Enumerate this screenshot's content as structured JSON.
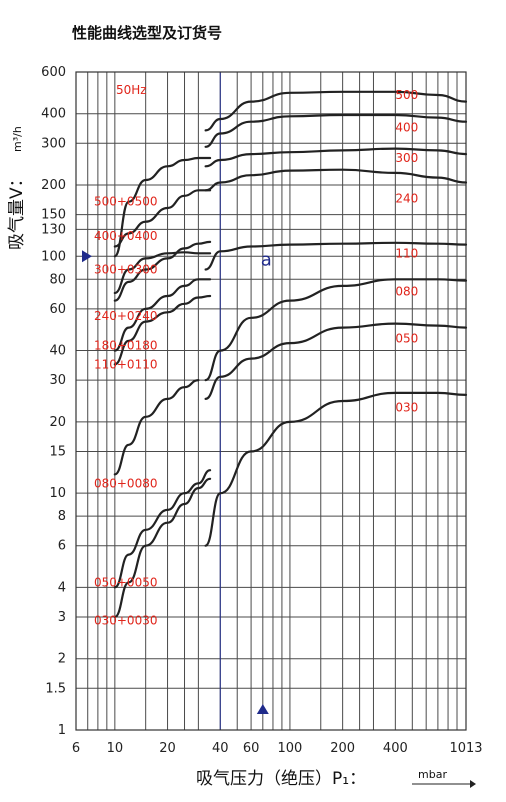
{
  "title": "性能曲线选型及订货号",
  "y_axis_title": "吸气量V：",
  "y_axis_unit": "m³/h",
  "x_axis_title": "吸气压力（绝压）P₁：",
  "x_axis_unit": "mbar",
  "frequency": "50Hz",
  "point_marker": "a",
  "colors": {
    "curve": "#222222",
    "label": "#e0251b",
    "marker": "#1f2a8a",
    "grid": "#4a4a4a"
  },
  "chart_data": {
    "type": "line",
    "x_scale": "log",
    "y_scale": "log",
    "xlim": [
      6,
      1013
    ],
    "ylim": [
      1,
      600
    ],
    "x_ticks": [
      6,
      10,
      20,
      40,
      60,
      100,
      200,
      400,
      1013
    ],
    "x_tick_labels": [
      "6",
      "10",
      "20",
      "40",
      "60",
      "100",
      "200",
      "400",
      "1013"
    ],
    "x_grid": [
      6,
      7,
      8,
      9,
      10,
      15,
      20,
      25,
      30,
      40,
      50,
      60,
      70,
      80,
      90,
      100,
      150,
      200,
      250,
      300,
      400,
      500,
      600,
      700,
      800,
      900,
      1013
    ],
    "y_ticks": [
      1,
      1.5,
      2,
      3,
      4,
      6,
      8,
      10,
      15,
      20,
      30,
      40,
      60,
      80,
      100,
      130,
      150,
      200,
      300,
      400,
      600
    ],
    "y_tick_labels": [
      "1",
      "1.5",
      "2",
      "3",
      "4",
      "6",
      "8",
      "10",
      "15",
      "20",
      "30",
      "40",
      "60",
      "80",
      "100",
      "130",
      "150",
      "200",
      "300",
      "400",
      "600"
    ],
    "series": [
      {
        "name": "500",
        "label_left": "500+0500",
        "left_label_y": 170,
        "low": [
          [
            10,
            100
          ],
          [
            12,
            170
          ],
          [
            15,
            210
          ],
          [
            20,
            240
          ],
          [
            25,
            255
          ],
          [
            30,
            260
          ],
          [
            35,
            260
          ]
        ],
        "high": [
          [
            33,
            340
          ],
          [
            40,
            380
          ],
          [
            60,
            450
          ],
          [
            100,
            490
          ],
          [
            200,
            495
          ],
          [
            400,
            495
          ],
          [
            700,
            480
          ],
          [
            1013,
            450
          ]
        ]
      },
      {
        "name": "400",
        "label_left": "400+0400",
        "left_label_y": 122,
        "low": [
          [
            10,
            110
          ],
          [
            12,
            125
          ],
          [
            15,
            140
          ],
          [
            20,
            160
          ],
          [
            25,
            180
          ],
          [
            30,
            190
          ],
          [
            35,
            190
          ]
        ],
        "high": [
          [
            33,
            290
          ],
          [
            40,
            330
          ],
          [
            60,
            370
          ],
          [
            100,
            390
          ],
          [
            200,
            395
          ],
          [
            400,
            395
          ],
          [
            700,
            385
          ],
          [
            1013,
            370
          ]
        ]
      },
      {
        "name": "300",
        "label_left": "300+0300",
        "left_label_y": 88,
        "low": [
          [
            10,
            70
          ],
          [
            12,
            88
          ],
          [
            15,
            98
          ],
          [
            20,
            103
          ],
          [
            25,
            104
          ],
          [
            30,
            103
          ],
          [
            35,
            103
          ]
        ],
        "high": [
          [
            33,
            240
          ],
          [
            40,
            255
          ],
          [
            60,
            270
          ],
          [
            100,
            275
          ],
          [
            200,
            280
          ],
          [
            400,
            285
          ],
          [
            700,
            280
          ],
          [
            1013,
            270
          ]
        ]
      },
      {
        "name": "240",
        "label_left": "240+0240",
        "left_label_y": 56,
        "low": [
          [
            10,
            65
          ],
          [
            12,
            78
          ],
          [
            15,
            88
          ],
          [
            20,
            98
          ],
          [
            25,
            108
          ],
          [
            30,
            113
          ],
          [
            35,
            115
          ]
        ],
        "high": [
          [
            33,
            190
          ],
          [
            40,
            205
          ],
          [
            60,
            220
          ],
          [
            100,
            230
          ],
          [
            200,
            232
          ],
          [
            400,
            225
          ],
          [
            700,
            215
          ],
          [
            1013,
            205
          ]
        ]
      },
      {
        "name": "110",
        "label_left": "180+0180",
        "left_label_y": 42,
        "low": [
          [
            10,
            40
          ],
          [
            12,
            50
          ],
          [
            15,
            60
          ],
          [
            20,
            68
          ],
          [
            25,
            75
          ],
          [
            30,
            80
          ],
          [
            35,
            80
          ]
        ],
        "high": [
          [
            33,
            88
          ],
          [
            40,
            105
          ],
          [
            60,
            110
          ],
          [
            100,
            112
          ],
          [
            200,
            113
          ],
          [
            400,
            114
          ],
          [
            700,
            113
          ],
          [
            1013,
            112
          ]
        ]
      },
      {
        "name": "080",
        "label_left": "110+0110",
        "left_label_y": 35,
        "low": [
          [
            10,
            35
          ],
          [
            12,
            44
          ],
          [
            15,
            53
          ],
          [
            20,
            58
          ],
          [
            25,
            63
          ],
          [
            30,
            67
          ],
          [
            35,
            68
          ]
        ],
        "high": [
          [
            33,
            30
          ],
          [
            40,
            40
          ],
          [
            60,
            55
          ],
          [
            100,
            65
          ],
          [
            200,
            75
          ],
          [
            400,
            80
          ],
          [
            700,
            80
          ],
          [
            1013,
            79
          ]
        ]
      },
      {
        "name": "050",
        "label_left": "080+0080",
        "left_label_y": 11,
        "low": [
          [
            10,
            12
          ],
          [
            12,
            16
          ],
          [
            15,
            21
          ],
          [
            20,
            25
          ],
          [
            25,
            28
          ],
          [
            30,
            30
          ]
        ],
        "high": [
          [
            33,
            25
          ],
          [
            40,
            31
          ],
          [
            60,
            37
          ],
          [
            100,
            43
          ],
          [
            200,
            50
          ],
          [
            400,
            52
          ],
          [
            700,
            51
          ],
          [
            1013,
            50
          ]
        ]
      },
      {
        "name": "030",
        "label_left": "050+0050",
        "left_label_y": 4.2,
        "low": [
          [
            10,
            4
          ],
          [
            12,
            5.5
          ],
          [
            15,
            7
          ],
          [
            20,
            8.5
          ],
          [
            25,
            10
          ],
          [
            30,
            11
          ],
          [
            35,
            12.5
          ]
        ],
        "high": [
          [
            33,
            6
          ],
          [
            40,
            10
          ],
          [
            60,
            15
          ],
          [
            100,
            20
          ],
          [
            200,
            24.5
          ],
          [
            400,
            26.5
          ],
          [
            700,
            26.5
          ],
          [
            1013,
            26
          ]
        ]
      },
      {
        "name": "",
        "label_left": "030+0030",
        "left_label_y": 2.9,
        "low": [
          [
            10,
            3
          ],
          [
            12,
            4.2
          ],
          [
            15,
            6
          ],
          [
            20,
            7.5
          ],
          [
            25,
            9
          ],
          [
            30,
            10.5
          ],
          [
            35,
            11.5
          ]
        ],
        "high": []
      }
    ],
    "right_labels": [
      {
        "text": "500",
        "y": 480
      },
      {
        "text": "400",
        "y": 350
      },
      {
        "text": "300",
        "y": 260
      },
      {
        "text": "240",
        "y": 175
      },
      {
        "text": "110",
        "y": 103
      },
      {
        "text": "080",
        "y": 71
      },
      {
        "text": "050",
        "y": 45
      },
      {
        "text": "030",
        "y": 23
      }
    ],
    "separator_x": 40,
    "marker_point": {
      "x": 70,
      "y": 95,
      "label": "a"
    },
    "marker_y_arrow": 100,
    "marker_x_arrow": 70
  }
}
